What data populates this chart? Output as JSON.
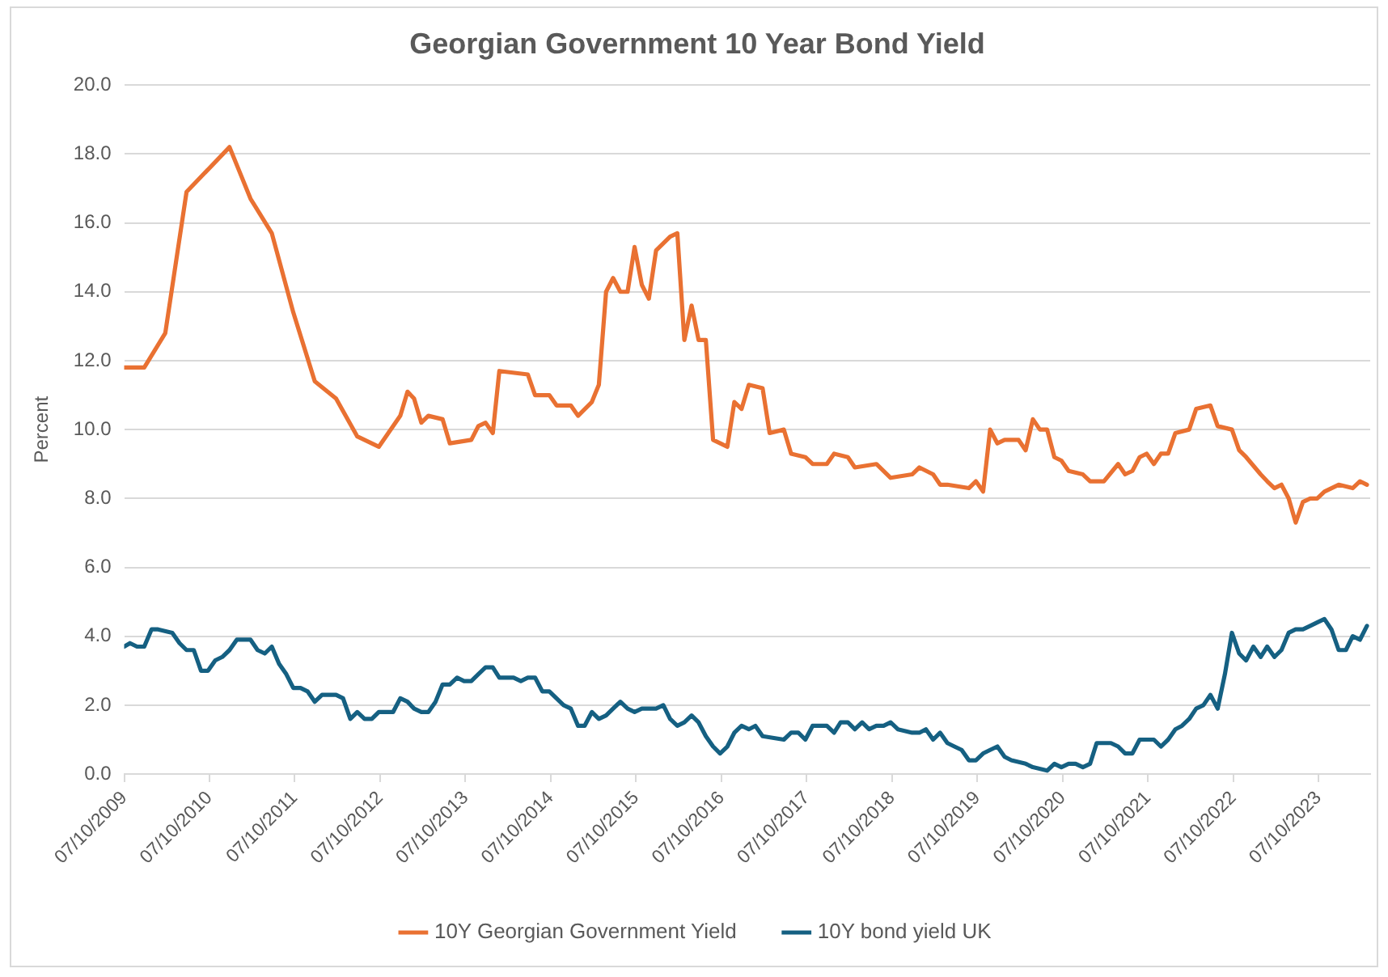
{
  "chart_data": {
    "type": "line",
    "title": "Georgian Government 10 Year Bond Yield",
    "ylabel": "Percent",
    "xlim": [
      "2009-10-07",
      "2024-05-15"
    ],
    "xticks": [
      {
        "value": "2009-10-07",
        "label": "07/10/2009"
      },
      {
        "value": "2010-10-07",
        "label": "07/10/2010"
      },
      {
        "value": "2011-10-07",
        "label": "07/10/2011"
      },
      {
        "value": "2012-10-07",
        "label": "07/10/2012"
      },
      {
        "value": "2013-10-07",
        "label": "07/10/2013"
      },
      {
        "value": "2014-10-07",
        "label": "07/10/2014"
      },
      {
        "value": "2015-10-07",
        "label": "07/10/2015"
      },
      {
        "value": "2016-10-07",
        "label": "07/10/2016"
      },
      {
        "value": "2017-10-07",
        "label": "07/10/2017"
      },
      {
        "value": "2018-10-07",
        "label": "07/10/2018"
      },
      {
        "value": "2019-10-07",
        "label": "07/10/2019"
      },
      {
        "value": "2020-10-07",
        "label": "07/10/2020"
      },
      {
        "value": "2021-10-07",
        "label": "07/10/2021"
      },
      {
        "value": "2022-10-07",
        "label": "07/10/2022"
      },
      {
        "value": "2023-10-07",
        "label": "07/10/2023"
      }
    ],
    "ylim": [
      0,
      20
    ],
    "yticks": [
      {
        "value": 0,
        "label": "0.0"
      },
      {
        "value": 2,
        "label": "2.0"
      },
      {
        "value": 4,
        "label": "4.0"
      },
      {
        "value": 6,
        "label": "6.0"
      },
      {
        "value": 8,
        "label": "8.0"
      },
      {
        "value": 10,
        "label": "10.0"
      },
      {
        "value": 12,
        "label": "12.0"
      },
      {
        "value": 14,
        "label": "14.0"
      },
      {
        "value": 16,
        "label": "16.0"
      },
      {
        "value": 18,
        "label": "18.0"
      },
      {
        "value": 20,
        "label": "20.0"
      }
    ],
    "grid": "y",
    "legend": "bottom",
    "marker": "none",
    "line_style": "solid",
    "series": [
      {
        "name": "10Y Georgian Government Yield",
        "color": "#e97132",
        "x": [
          "2009-10-07",
          "2010-01",
          "2010-04",
          "2010-07",
          "2011-01",
          "2011-04",
          "2011-07",
          "2011-10",
          "2012-01",
          "2012-04",
          "2012-07",
          "2012-10",
          "2013-01",
          "2013-02",
          "2013-03",
          "2013-04",
          "2013-05",
          "2013-07",
          "2013-08",
          "2013-11",
          "2013-12",
          "2014-01",
          "2014-02",
          "2014-03",
          "2014-07",
          "2014-08",
          "2014-10",
          "2014-11",
          "2015-01",
          "2015-02",
          "2015-04",
          "2015-05",
          "2015-06",
          "2015-07",
          "2015-08",
          "2015-09",
          "2015-10",
          "2015-11",
          "2015-12",
          "2016-01",
          "2016-03",
          "2016-04",
          "2016-05",
          "2016-06",
          "2016-07",
          "2016-08",
          "2016-09",
          "2016-11",
          "2016-12",
          "2017-01",
          "2017-02",
          "2017-04",
          "2017-05",
          "2017-07",
          "2017-08",
          "2017-10",
          "2017-11",
          "2018-01",
          "2018-02",
          "2018-04",
          "2018-05",
          "2018-08",
          "2018-10",
          "2019-01",
          "2019-02",
          "2019-04",
          "2019-05",
          "2019-06",
          "2019-09",
          "2019-10",
          "2019-11",
          "2019-12",
          "2020-01",
          "2020-02",
          "2020-04",
          "2020-05",
          "2020-06",
          "2020-07",
          "2020-08",
          "2020-09",
          "2020-10",
          "2020-11",
          "2021-01",
          "2021-02",
          "2021-04",
          "2021-06",
          "2021-07",
          "2021-08",
          "2021-09",
          "2021-10",
          "2021-11",
          "2021-12",
          "2022-01",
          "2022-02",
          "2022-04",
          "2022-05",
          "2022-07",
          "2022-08",
          "2022-10",
          "2022-11",
          "2022-12",
          "2023-02",
          "2023-03",
          "2023-04",
          "2023-05",
          "2023-06",
          "2023-07",
          "2023-08",
          "2023-09",
          "2023-10",
          "2023-11",
          "2024-01",
          "2024-03",
          "2024-04",
          "2024-05"
        ],
        "values": [
          11.8,
          11.8,
          12.8,
          16.9,
          18.2,
          16.7,
          15.7,
          13.4,
          11.4,
          10.9,
          9.8,
          9.5,
          10.4,
          11.1,
          10.9,
          10.2,
          10.4,
          10.3,
          9.6,
          9.7,
          10.1,
          10.2,
          9.9,
          11.7,
          11.6,
          11.0,
          11.0,
          10.7,
          10.7,
          10.4,
          10.8,
          11.3,
          14.0,
          14.4,
          14.0,
          14.0,
          15.3,
          14.2,
          13.8,
          15.2,
          15.6,
          15.7,
          12.6,
          13.6,
          12.6,
          12.6,
          9.7,
          9.5,
          10.8,
          10.6,
          11.3,
          11.2,
          9.9,
          10.0,
          9.3,
          9.2,
          9.0,
          9.0,
          9.3,
          9.2,
          8.9,
          9.0,
          8.6,
          8.7,
          8.9,
          8.7,
          8.4,
          8.4,
          8.3,
          8.5,
          8.2,
          10.0,
          9.6,
          9.7,
          9.7,
          9.4,
          10.3,
          10.0,
          10.0,
          9.2,
          9.1,
          8.8,
          8.7,
          8.5,
          8.5,
          9.0,
          8.7,
          8.8,
          9.2,
          9.3,
          9.0,
          9.3,
          9.3,
          9.9,
          10.0,
          10.6,
          10.7,
          10.1,
          10.0,
          9.4,
          9.2,
          8.7,
          8.5,
          8.3,
          8.4,
          8.0,
          7.3,
          7.9,
          8.0,
          8.0,
          8.2,
          8.4,
          8.3,
          8.5,
          8.4
        ]
      },
      {
        "name": "10Y bond yield UK",
        "color": "#156082",
        "x": [
          "2009-10-07",
          "2009-11",
          "2009-12",
          "2010-01",
          "2010-02",
          "2010-03",
          "2010-05",
          "2010-06",
          "2010-07",
          "2010-08",
          "2010-09",
          "2010-10",
          "2010-11",
          "2010-12",
          "2011-01",
          "2011-02",
          "2011-04",
          "2011-05",
          "2011-06",
          "2011-07",
          "2011-08",
          "2011-09",
          "2011-10",
          "2011-11",
          "2011-12",
          "2012-01",
          "2012-02",
          "2012-04",
          "2012-05",
          "2012-06",
          "2012-07",
          "2012-08",
          "2012-09",
          "2012-10",
          "2012-11",
          "2012-12",
          "2013-01",
          "2013-02",
          "2013-03",
          "2013-04",
          "2013-05",
          "2013-06",
          "2013-07",
          "2013-08",
          "2013-09",
          "2013-10",
          "2013-11",
          "2013-12",
          "2014-01",
          "2014-02",
          "2014-03",
          "2014-05",
          "2014-06",
          "2014-07",
          "2014-08",
          "2014-09",
          "2014-10",
          "2014-12",
          "2015-01",
          "2015-02",
          "2015-03",
          "2015-04",
          "2015-05",
          "2015-06",
          "2015-07",
          "2015-08",
          "2015-09",
          "2015-10",
          "2015-11",
          "2016-01",
          "2016-02",
          "2016-03",
          "2016-04",
          "2016-05",
          "2016-06",
          "2016-07",
          "2016-08",
          "2016-09",
          "2016-10",
          "2016-11",
          "2016-12",
          "2017-01",
          "2017-02",
          "2017-03",
          "2017-04",
          "2017-07",
          "2017-08",
          "2017-09",
          "2017-10",
          "2017-11",
          "2018-01",
          "2018-02",
          "2018-03",
          "2018-04",
          "2018-05",
          "2018-06",
          "2018-07",
          "2018-08",
          "2018-09",
          "2018-10",
          "2018-11",
          "2019-01",
          "2019-02",
          "2019-03",
          "2019-04",
          "2019-05",
          "2019-06",
          "2019-07",
          "2019-08",
          "2019-09",
          "2019-10",
          "2019-11",
          "2019-12",
          "2020-01",
          "2020-02",
          "2020-03",
          "2020-05",
          "2020-06",
          "2020-08",
          "2020-09",
          "2020-10",
          "2020-11",
          "2020-12",
          "2021-01",
          "2021-02",
          "2021-03",
          "2021-05",
          "2021-06",
          "2021-07",
          "2021-08",
          "2021-09",
          "2021-11",
          "2021-12",
          "2022-01",
          "2022-02",
          "2022-03",
          "2022-04",
          "2022-05",
          "2022-06",
          "2022-07",
          "2022-08",
          "2022-09",
          "2022-10",
          "2022-11",
          "2022-12",
          "2023-01",
          "2023-02",
          "2023-03",
          "2023-04",
          "2023-05",
          "2023-06",
          "2023-07",
          "2023-08",
          "2023-09",
          "2023-10",
          "2023-11",
          "2023-12",
          "2024-01",
          "2024-02",
          "2024-03",
          "2024-04",
          "2024-05"
        ],
        "values": [
          3.7,
          3.8,
          3.7,
          3.7,
          4.2,
          4.2,
          4.1,
          3.8,
          3.6,
          3.6,
          3.0,
          3.0,
          3.3,
          3.4,
          3.6,
          3.9,
          3.9,
          3.6,
          3.5,
          3.7,
          3.2,
          2.9,
          2.5,
          2.5,
          2.4,
          2.1,
          2.3,
          2.3,
          2.2,
          1.6,
          1.8,
          1.6,
          1.6,
          1.8,
          1.8,
          1.8,
          2.2,
          2.1,
          1.9,
          1.8,
          1.8,
          2.1,
          2.6,
          2.6,
          2.8,
          2.7,
          2.7,
          2.9,
          3.1,
          3.1,
          2.8,
          2.8,
          2.7,
          2.8,
          2.8,
          2.4,
          2.4,
          2.0,
          1.9,
          1.4,
          1.4,
          1.8,
          1.6,
          1.7,
          1.9,
          2.1,
          1.9,
          1.8,
          1.9,
          1.9,
          2.0,
          1.6,
          1.4,
          1.5,
          1.7,
          1.5,
          1.1,
          0.8,
          0.6,
          0.8,
          1.2,
          1.4,
          1.3,
          1.4,
          1.1,
          1.0,
          1.2,
          1.2,
          1.0,
          1.4,
          1.4,
          1.2,
          1.5,
          1.5,
          1.3,
          1.5,
          1.3,
          1.4,
          1.4,
          1.5,
          1.3,
          1.2,
          1.2,
          1.3,
          1.0,
          1.2,
          0.9,
          0.8,
          0.7,
          0.4,
          0.4,
          0.6,
          0.7,
          0.8,
          0.5,
          0.4,
          0.3,
          0.2,
          0.1,
          0.3,
          0.2,
          0.3,
          0.3,
          0.2,
          0.3,
          0.9,
          0.9,
          0.8,
          0.6,
          0.6,
          1.0,
          1.0,
          0.8,
          1.0,
          1.3,
          1.4,
          1.6,
          1.9,
          2.0,
          2.3,
          1.9,
          2.9,
          4.1,
          3.5,
          3.3,
          3.7,
          3.4,
          3.7,
          3.4,
          3.6,
          4.1,
          4.2,
          4.2,
          4.3,
          4.4,
          4.5,
          4.2,
          3.6,
          3.6,
          4.0,
          3.9,
          4.3
        ]
      }
    ]
  }
}
